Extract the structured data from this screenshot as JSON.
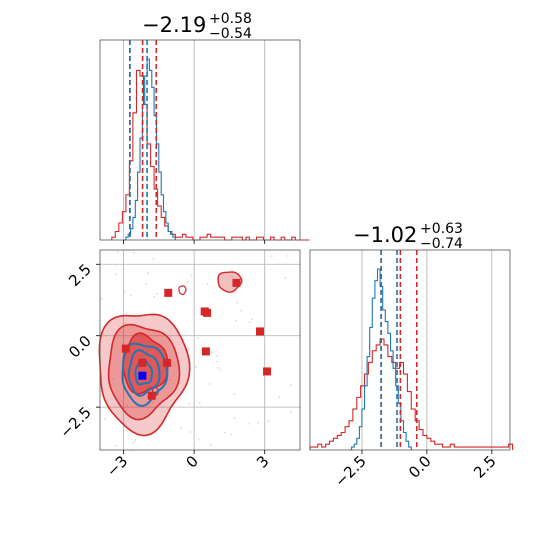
{
  "chart_data": {
    "type": "scatter",
    "layout": "corner-plot",
    "titles": [
      {
        "main": "−2.19",
        "sup": "+0.58",
        "sub": "−0.54"
      },
      {
        "main": "−1.02",
        "sup": "+0.63",
        "sub": "−0.74"
      }
    ],
    "grid": true,
    "colors": {
      "series_a": "#d62728",
      "series_b": "#1f77b4",
      "marker_highlight": "#0000ff",
      "grid": "#b0b0b0"
    },
    "panels": {
      "hist_x": {
        "xlim": [
          -4,
          4.5
        ],
        "bins_a": {
          "start": -3.5,
          "step": 0.15,
          "counts": [
            1,
            3,
            6,
            10,
            16,
            28,
            45,
            60,
            58,
            48,
            34,
            26,
            18,
            12,
            8,
            5,
            3,
            2,
            1,
            1,
            2,
            1,
            1,
            0,
            0,
            1,
            1,
            2,
            1,
            1,
            1,
            1,
            0,
            0,
            1,
            1,
            1,
            0,
            1,
            0,
            0,
            1,
            1,
            0,
            0,
            1,
            0,
            0,
            1,
            0,
            0,
            1,
            0,
            0,
            0,
            0
          ]
        },
        "bins_b": {
          "start": -3.0,
          "step": 0.1,
          "counts": [
            0,
            1,
            2,
            4,
            8,
            14,
            24,
            36,
            48,
            58,
            64,
            60,
            54,
            44,
            34,
            24,
            16,
            10,
            6,
            3,
            2,
            1
          ]
        },
        "quantile_lines_a": [
          -2.73,
          -2.19,
          -1.61
        ],
        "quantile_lines_b": [
          -2.73,
          -2.0
        ]
      },
      "hist_y": {
        "xlim": [
          -4.5,
          3.2
        ],
        "bins_a": {
          "start": -4.5,
          "step": 0.15,
          "counts": [
            1,
            1,
            2,
            1,
            2,
            3,
            4,
            5,
            6,
            8,
            10,
            14,
            18,
            22,
            26,
            30,
            34,
            36,
            38,
            36,
            32,
            30,
            28,
            30,
            26,
            20,
            14,
            10,
            7,
            5,
            4,
            3,
            2,
            2,
            1,
            1,
            2,
            1,
            1,
            1,
            1,
            1,
            1,
            1,
            1,
            1,
            1,
            1,
            1,
            1,
            1,
            2
          ]
        },
        "bins_b": {
          "start": -3.0,
          "step": 0.1,
          "counts": [
            0,
            1,
            2,
            4,
            8,
            14,
            22,
            32,
            42,
            52,
            58,
            62,
            56,
            48,
            44,
            40,
            34,
            28,
            22,
            16,
            10,
            6,
            3,
            1
          ]
        },
        "quantile_lines_a": [
          -1.76,
          -1.02,
          -0.39
        ],
        "quantile_lines_b": [
          -1.76,
          -1.15
        ]
      },
      "scatter_2d": {
        "xlim": [
          -4,
          4.5
        ],
        "ylim": [
          -4,
          3
        ],
        "xticks": [
          -3,
          0,
          3
        ],
        "yticks": [
          -2.5,
          0.0,
          2.5
        ],
        "markers_series_a": [
          [
            -1.1,
            1.5
          ],
          [
            0.45,
            0.85
          ],
          [
            0.55,
            0.8
          ],
          [
            1.8,
            1.85
          ],
          [
            2.8,
            0.15
          ],
          [
            3.1,
            -1.25
          ],
          [
            0.5,
            -0.55
          ],
          [
            -2.9,
            -0.45
          ],
          [
            -2.2,
            -0.95
          ],
          [
            -1.15,
            -0.95
          ],
          [
            -1.8,
            -2.1
          ]
        ],
        "marker_highlight": [
          -2.2,
          -1.4
        ]
      }
    },
    "xtick_labels": {
      "scatter_2d": [
        "−3",
        "0",
        "3"
      ],
      "hist_y": [
        "−2.5",
        "0.0",
        "2.5"
      ]
    },
    "ytick_labels": {
      "scatter_2d": [
        "−2.5",
        "0.0",
        "2.5"
      ]
    }
  }
}
